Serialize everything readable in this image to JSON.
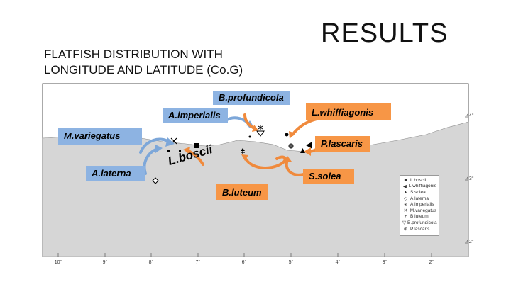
{
  "slide": {
    "title": "RESULTS",
    "subtitle_line1": "FLATFISH DISTRIBUTION WITH",
    "subtitle_line2": "LONGITUDE AND LATITUDE (Co.G)"
  },
  "map": {
    "species_labels": {
      "b_profundicola": "B.profundicola",
      "a_imperialis": "A.imperialis",
      "l_whiffiagonis": "L.whiffiagonis",
      "m_variegatus": "M.variegatus",
      "p_lascaris": "P.lascaris",
      "a_laterna": "A.laterna",
      "l_boscii": "L.boscii",
      "s_solea": "S.solea",
      "b_luteum": "B.luteum"
    },
    "longitude_ticks": [
      "10°",
      "9°",
      "8°",
      "7°",
      "6°",
      "5°",
      "4°",
      "3°",
      "2°"
    ],
    "latitude_ticks": [
      "44°",
      "43°",
      "42°"
    ],
    "legend": [
      {
        "symbol": "■",
        "label": "L.boscii"
      },
      {
        "symbol": "◀",
        "label": "L.whiffiagonis"
      },
      {
        "symbol": "▲",
        "label": "S.solea"
      },
      {
        "symbol": "◇",
        "label": "A.laterna"
      },
      {
        "symbol": "✳",
        "label": "A.imperialis"
      },
      {
        "symbol": "✕",
        "label": "M.variegatus"
      },
      {
        "symbol": "+",
        "label": "B.luteum"
      },
      {
        "symbol": "▽",
        "label": "B.profundicola"
      },
      {
        "symbol": "⊕",
        "label": "P.lascaris"
      }
    ],
    "colors": {
      "blue_label": "#8db3e2",
      "orange_label": "#f79646",
      "blue_arrow": "#7da7d9",
      "orange_arrow": "#f08a3c",
      "sea": "#ffffff",
      "land": "#d6d6d6"
    }
  }
}
